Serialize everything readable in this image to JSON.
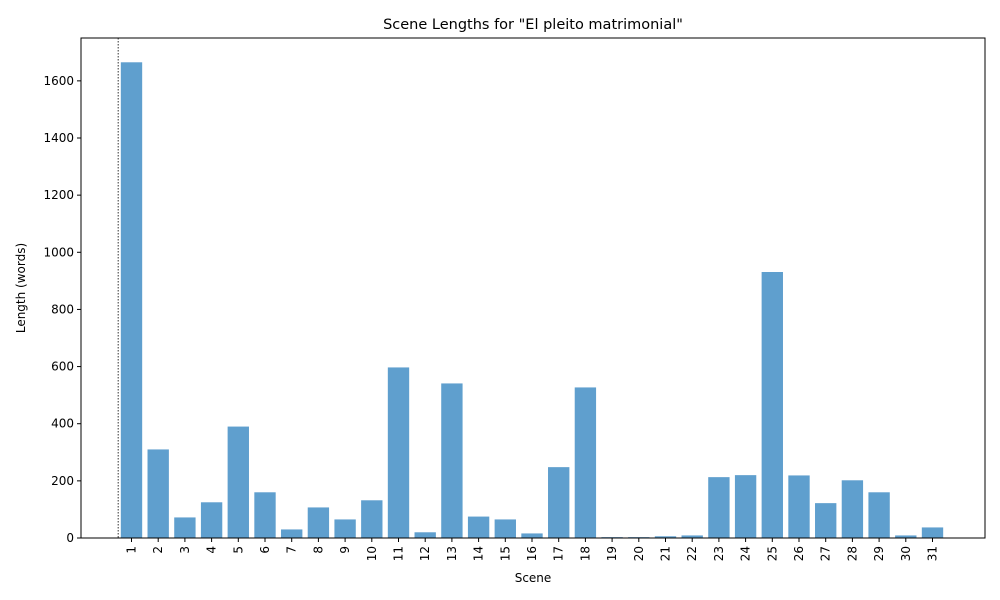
{
  "chart_data": {
    "type": "bar",
    "title": "Scene Lengths for \"El pleito matrimonial\"",
    "xlabel": "Scene",
    "ylabel": "Length (words)",
    "categories": [
      "1",
      "2",
      "3",
      "4",
      "5",
      "6",
      "7",
      "8",
      "9",
      "10",
      "11",
      "12",
      "13",
      "14",
      "15",
      "16",
      "17",
      "18",
      "19",
      "20",
      "21",
      "22",
      "23",
      "24",
      "25",
      "26",
      "27",
      "28",
      "29",
      "30",
      "31"
    ],
    "values": [
      1665,
      310,
      72,
      125,
      390,
      160,
      30,
      107,
      65,
      132,
      597,
      20,
      541,
      75,
      65,
      16,
      248,
      527,
      3,
      3,
      6,
      9,
      213,
      220,
      931,
      219,
      122,
      202,
      160,
      9,
      37
    ],
    "ylim": [
      0,
      1750
    ],
    "yticks": [
      0,
      200,
      400,
      600,
      800,
      1000,
      1200,
      1400,
      1600
    ],
    "bar_color": "#5f9fce",
    "marker_line_at_x": 0.5,
    "grid": false,
    "legend": "none"
  }
}
